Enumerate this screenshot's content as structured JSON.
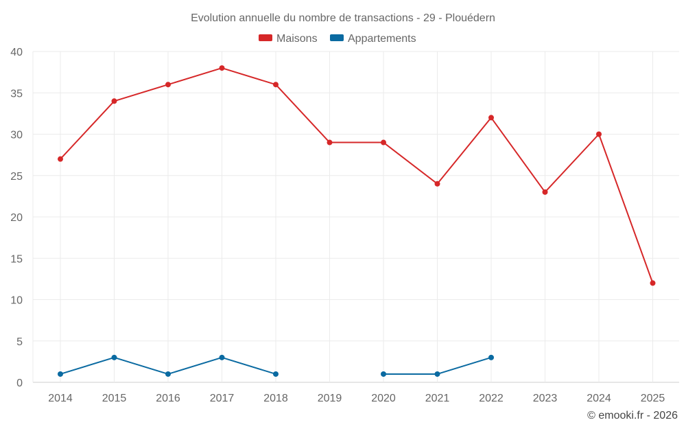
{
  "chart_data": {
    "type": "line",
    "title": "Evolution annuelle du nombre de transactions - 29 - Plouédern",
    "xlabel": "",
    "ylabel": "",
    "categories": [
      "2014",
      "2015",
      "2016",
      "2017",
      "2018",
      "2019",
      "2020",
      "2021",
      "2022",
      "2023",
      "2024",
      "2025"
    ],
    "ylim": [
      0,
      40
    ],
    "yticks": [
      0,
      5,
      10,
      15,
      20,
      25,
      30,
      35,
      40
    ],
    "grid": true,
    "legend_position": "top-center",
    "series": [
      {
        "name": "Maisons",
        "color": "#d62728",
        "values": [
          27,
          34,
          36,
          38,
          36,
          29,
          29,
          24,
          32,
          23,
          30,
          12
        ]
      },
      {
        "name": "Appartements",
        "color": "#0a6aa1",
        "values": [
          1,
          3,
          1,
          3,
          1,
          null,
          1,
          1,
          3,
          null,
          null,
          null
        ]
      }
    ]
  },
  "footer": {
    "copyright": "© emooki.fr - 2026"
  }
}
